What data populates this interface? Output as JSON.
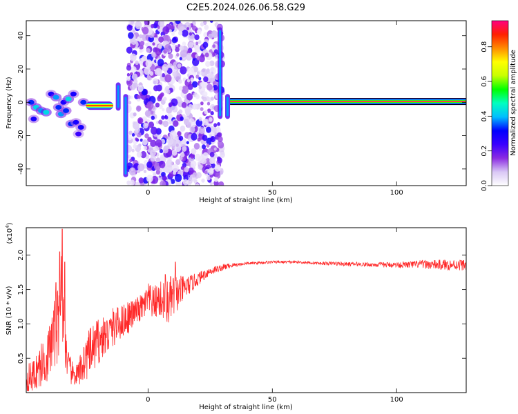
{
  "page": {
    "title": "C2E5.2024.026.06.58.G29"
  },
  "colorbar": {
    "label": "Normalized spectral amplitude",
    "ticks": [
      {
        "value": 0.0,
        "label": "0.0"
      },
      {
        "value": 0.2,
        "label": "0.2"
      },
      {
        "value": 0.4,
        "label": "0.4"
      },
      {
        "value": 0.6,
        "label": "0.6"
      },
      {
        "value": 0.8,
        "label": "0.8"
      }
    ],
    "gradient_stops": [
      "#ffffff",
      "#d9c7f5",
      "#8a2be2",
      "#3a00ff",
      "#0000ff",
      "#00bfff",
      "#00ffc0",
      "#00ff00",
      "#c8ff00",
      "#ffff00",
      "#ff8c00",
      "#ff2000",
      "#ff0080"
    ]
  },
  "chart_data": [
    {
      "type": "heatmap",
      "name": "spectrogram",
      "title": "",
      "xlabel": "Height of straight line (km)",
      "ylabel": "Frequency (Hz)",
      "xlim": [
        -49,
        128
      ],
      "ylim": [
        -50,
        49
      ],
      "xticks": [
        {
          "value": 0,
          "label": "0"
        },
        {
          "value": 50,
          "label": "50"
        },
        {
          "value": 100,
          "label": "100"
        }
      ],
      "yticks": [
        {
          "value": -40,
          "label": "-40"
        },
        {
          "value": -20,
          "label": "-20"
        },
        {
          "value": 0,
          "label": "0"
        },
        {
          "value": 20,
          "label": "20"
        },
        {
          "value": 40,
          "label": "40"
        }
      ],
      "noise_band_x": [
        -8,
        30
      ],
      "tone_band": {
        "x_start": 33,
        "x_end": 128,
        "freq": 0.5,
        "amplitude": 1.0
      },
      "early_blobs": [
        {
          "x": -47,
          "f": 0,
          "a": 0.35
        },
        {
          "x": -46,
          "f": -10,
          "a": 0.3
        },
        {
          "x": -45,
          "f": -3,
          "a": 0.45
        },
        {
          "x": -43,
          "f": -5,
          "a": 0.4
        },
        {
          "x": -41,
          "f": -6,
          "a": 0.45
        },
        {
          "x": -39,
          "f": 5,
          "a": 0.3
        },
        {
          "x": -37,
          "f": 3,
          "a": 0.4
        },
        {
          "x": -36,
          "f": -3,
          "a": 0.35
        },
        {
          "x": -35,
          "f": -7,
          "a": 0.4
        },
        {
          "x": -34,
          "f": 0,
          "a": 0.3
        },
        {
          "x": -33,
          "f": -5,
          "a": 0.35
        },
        {
          "x": -32,
          "f": 2,
          "a": 0.45
        },
        {
          "x": -31,
          "f": -13,
          "a": 0.35
        },
        {
          "x": -30,
          "f": 5,
          "a": 0.3
        },
        {
          "x": -29,
          "f": -12,
          "a": 0.3
        },
        {
          "x": -28,
          "f": -19,
          "a": 0.25
        },
        {
          "x": -27,
          "f": -15,
          "a": 0.3
        },
        {
          "x": -26,
          "f": 0,
          "a": 0.35
        }
      ],
      "early_tone": {
        "x_start": -25,
        "x_end": -14,
        "freq": -2,
        "amplitude": 0.9
      },
      "transients": [
        {
          "x": -12,
          "f_from": -5,
          "f_to": 12
        },
        {
          "x": -9,
          "f_from": -45,
          "f_to": 5
        },
        {
          "x": 29,
          "f_from": -10,
          "f_to": 45
        },
        {
          "x": 32,
          "f_from": -10,
          "f_to": 5
        }
      ]
    },
    {
      "type": "line",
      "name": "snr",
      "title": "",
      "xlabel": "Height of straight line (km)",
      "ylabel": "SNR (10 * v/v)",
      "multiplier_label": "(x10",
      "multiplier_exponent": "4",
      "multiplier_close": ")",
      "xlim": [
        -49,
        128
      ],
      "ylim": [
        0,
        2.4
      ],
      "xticks": [
        {
          "value": 0,
          "label": "0"
        },
        {
          "value": 50,
          "label": "50"
        },
        {
          "value": 100,
          "label": "100"
        }
      ],
      "yticks": [
        {
          "value": 0.5,
          "label": "0.5"
        },
        {
          "value": 1.0,
          "label": "1.0"
        },
        {
          "value": 1.5,
          "label": "1.5"
        },
        {
          "value": 2.0,
          "label": "2.0"
        }
      ],
      "series": [
        {
          "color": "#ff2a2a",
          "x": [
            -49,
            -46,
            -44,
            -42,
            -40,
            -38,
            -36,
            -35,
            -34,
            -33,
            -32,
            -30,
            -28,
            -26,
            -24,
            -22,
            -20,
            -18,
            -16,
            -14,
            -12,
            -10,
            -8,
            -6,
            -4,
            -2,
            0,
            2,
            4,
            6,
            8,
            10,
            12,
            14,
            16,
            18,
            20,
            22,
            24,
            26,
            28,
            30,
            32,
            35,
            40,
            45,
            50,
            55,
            60,
            65,
            70,
            75,
            80,
            85,
            90,
            95,
            100,
            105,
            110,
            115,
            120,
            125,
            128
          ],
          "y": [
            0.2,
            0.25,
            0.35,
            0.45,
            0.55,
            0.85,
            1.0,
            1.5,
            1.05,
            0.65,
            0.35,
            0.25,
            0.25,
            0.45,
            0.55,
            0.65,
            0.75,
            0.8,
            0.85,
            0.95,
            1.0,
            1.05,
            1.1,
            1.15,
            1.2,
            1.25,
            1.35,
            1.3,
            1.35,
            1.35,
            1.3,
            1.4,
            1.45,
            1.5,
            1.55,
            1.6,
            1.65,
            1.7,
            1.75,
            1.78,
            1.8,
            1.82,
            1.84,
            1.86,
            1.88,
            1.89,
            1.9,
            1.9,
            1.9,
            1.89,
            1.88,
            1.88,
            1.87,
            1.87,
            1.86,
            1.86,
            1.86,
            1.86,
            1.87,
            1.86,
            1.86,
            1.86,
            1.86
          ],
          "noise": [
            0.2,
            0.25,
            0.3,
            0.35,
            0.4,
            0.5,
            0.55,
            0.6,
            0.5,
            0.35,
            0.25,
            0.15,
            0.2,
            0.3,
            0.35,
            0.35,
            0.35,
            0.3,
            0.3,
            0.3,
            0.25,
            0.25,
            0.25,
            0.2,
            0.2,
            0.2,
            0.25,
            0.25,
            0.25,
            0.3,
            0.35,
            0.35,
            0.25,
            0.2,
            0.15,
            0.12,
            0.1,
            0.08,
            0.07,
            0.06,
            0.05,
            0.05,
            0.04,
            0.03,
            0.02,
            0.02,
            0.02,
            0.02,
            0.02,
            0.02,
            0.02,
            0.03,
            0.03,
            0.03,
            0.03,
            0.04,
            0.04,
            0.05,
            0.06,
            0.07,
            0.08,
            0.08,
            0.08
          ],
          "spikes": [
            {
              "x": -34.5,
              "y": 2.38
            },
            {
              "x": -35.5,
              "y": 2.05
            },
            {
              "x": -33.5,
              "y": 1.9
            },
            {
              "x": -37,
              "y": 1.6
            },
            {
              "x": 11,
              "y": 1.9
            },
            {
              "x": 7,
              "y": 1.72
            }
          ]
        }
      ]
    }
  ]
}
